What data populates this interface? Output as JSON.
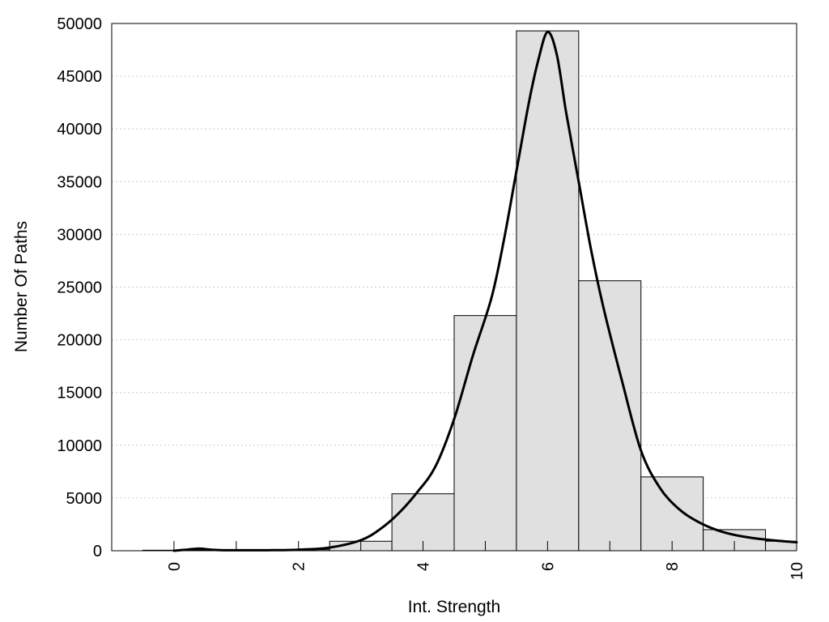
{
  "chart_data": {
    "type": "bar",
    "xlabel": "Int. Strength",
    "ylabel": "Number Of Paths",
    "xlim": [
      -1,
      10
    ],
    "ylim": [
      0,
      50000
    ],
    "x_ticks": [
      0,
      2,
      4,
      6,
      8,
      10
    ],
    "y_ticks": [
      0,
      5000,
      10000,
      15000,
      20000,
      25000,
      30000,
      35000,
      40000,
      45000,
      50000
    ],
    "grid": "horizontal-dotted",
    "bar_color": "#e0e0e0",
    "bar_edge_color": "#000000",
    "bins": [
      {
        "x": 0,
        "value": 50
      },
      {
        "x": 1,
        "value": 30
      },
      {
        "x": 2,
        "value": 100
      },
      {
        "x": 3,
        "value": 900
      },
      {
        "x": 4,
        "value": 5400
      },
      {
        "x": 5,
        "value": 22300
      },
      {
        "x": 6,
        "value": 49300
      },
      {
        "x": 7,
        "value": 25600
      },
      {
        "x": 8,
        "value": 7000
      },
      {
        "x": 9,
        "value": 2000
      },
      {
        "x": 10,
        "value": 900
      }
    ],
    "fit_curve": {
      "x": [
        0,
        0.2,
        0.4,
        0.6,
        0.8,
        1,
        1.5,
        2,
        2.5,
        3,
        3.3,
        3.6,
        3.9,
        4.2,
        4.5,
        4.8,
        5.1,
        5.3,
        5.5,
        5.7,
        5.85,
        6,
        6.15,
        6.3,
        6.5,
        6.7,
        6.9,
        7.2,
        7.5,
        7.8,
        8.1,
        8.4,
        8.7,
        9,
        9.3,
        9.6,
        10
      ],
      "y": [
        0,
        100,
        200,
        100,
        50,
        50,
        50,
        100,
        300,
        1000,
        2000,
        3500,
        5500,
        8000,
        12500,
        18500,
        24000,
        29500,
        36000,
        42500,
        46500,
        49200,
        47000,
        41500,
        35000,
        28500,
        23000,
        16000,
        9500,
        6000,
        4000,
        2800,
        2000,
        1500,
        1200,
        1000,
        800
      ]
    }
  }
}
